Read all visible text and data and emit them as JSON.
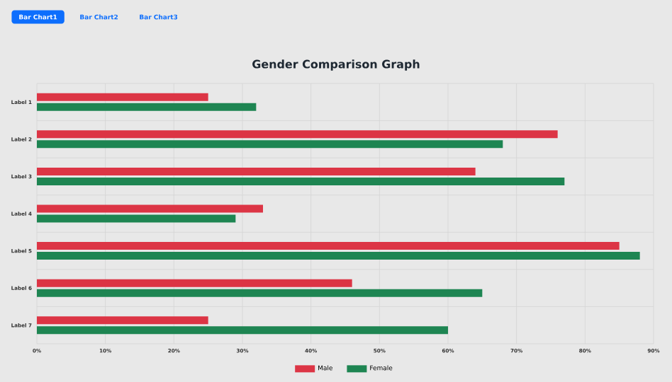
{
  "chart_data": {
    "type": "bar",
    "orientation": "horizontal",
    "title": "Gender Comparison Graph",
    "annotations": [
      "Bar Chart1",
      "Bar Chart2",
      "Bar Chart3"
    ],
    "categories": [
      "Label 1",
      "Label 2",
      "Label 3",
      "Label 4",
      "Label 5",
      "Label 6",
      "Label 7"
    ],
    "series": [
      {
        "name": "Male",
        "color": "#dc3545",
        "values": [
          25,
          76,
          64,
          33,
          85,
          46,
          25
        ]
      },
      {
        "name": "Female",
        "color": "#1e8552",
        "values": [
          32,
          68,
          77,
          29,
          88,
          65,
          60
        ]
      }
    ],
    "xlim": [
      0,
      90
    ],
    "xticks": [
      {
        "value": 0,
        "label": "0%"
      },
      {
        "value": 10,
        "label": "10%"
      },
      {
        "value": 20,
        "label": "20%"
      },
      {
        "value": 30,
        "label": "30%"
      },
      {
        "value": 40,
        "label": "40%"
      },
      {
        "value": 50,
        "label": "50%"
      },
      {
        "value": 60,
        "label": "60%"
      },
      {
        "value": 70,
        "label": "70%"
      },
      {
        "value": 80,
        "label": "80%"
      },
      {
        "value": 90,
        "label": "90%"
      }
    ],
    "grid": true,
    "legend": "bottom"
  }
}
